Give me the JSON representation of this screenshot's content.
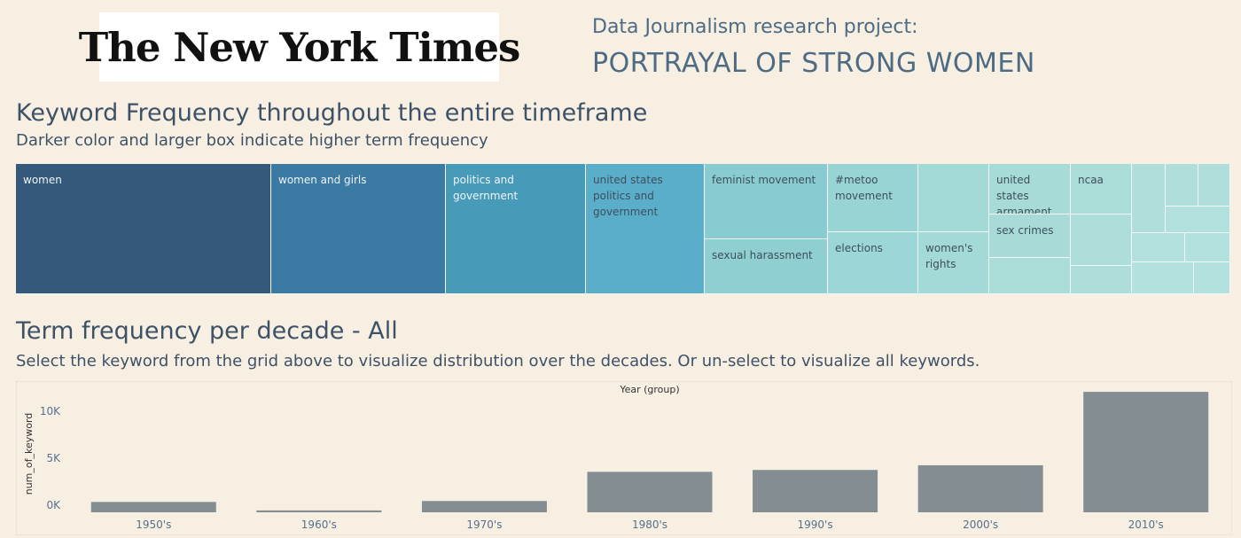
{
  "header": {
    "logo_text": "The New York Times",
    "project_subtitle": "Data Journalism research project:",
    "project_title": "PORTRAYAL OF STRONG WOMEN"
  },
  "section1": {
    "title": "Keyword Frequency throughout the entire timeframe",
    "subtitle": "Darker color and larger box indicate higher term frequency"
  },
  "treemap": {
    "tiles": [
      {
        "label": "women",
        "color": "#34597a"
      },
      {
        "label": "women and girls",
        "color": "#3b7ba3"
      },
      {
        "label": "politics and government",
        "color": "#479bb8"
      },
      {
        "label": "united states politics and government",
        "color": "#5aaeca"
      },
      {
        "label": "feminist movement",
        "color": "#88cbd0"
      },
      {
        "label": "sexual harassment",
        "color": "#8fcfd2"
      },
      {
        "label": "#metoo movement",
        "color": "#99d4d4"
      },
      {
        "label": "elections",
        "color": "#9dd6d6"
      },
      {
        "label": "",
        "color": "#a3d9d6"
      },
      {
        "label": "women's rights",
        "color": "#a3d9d6"
      },
      {
        "label": "united states armament",
        "color": "#a6dbd7"
      },
      {
        "label": "sex crimes",
        "color": "#a8dbd8"
      },
      {
        "label": "",
        "color": "#aadcd8"
      },
      {
        "label": "ncaa",
        "color": "#aadcd8"
      },
      {
        "label": "",
        "color": "#addeda"
      },
      {
        "label": "",
        "color": "#addeda"
      },
      {
        "label": "",
        "color": "#b0dfdb"
      },
      {
        "label": "",
        "color": "#b0dfdb"
      },
      {
        "label": "",
        "color": "#b0dfdb"
      },
      {
        "label": "",
        "color": "#b2e0dc"
      },
      {
        "label": "",
        "color": "#b2e0dc"
      },
      {
        "label": "",
        "color": "#b3e1dd"
      },
      {
        "label": "",
        "color": "#b3e1dd"
      },
      {
        "label": "",
        "color": "#b3e1dd"
      }
    ]
  },
  "section2": {
    "title": "Term frequency per decade - All",
    "subtitle": "Select the keyword from the grid above to visualize distribution over the decades. Or un-select to visualize all keywords."
  },
  "chart_data": {
    "type": "bar",
    "title": "Year (group)",
    "xlabel": "",
    "ylabel": "num_of_keyword",
    "categories": [
      "1950's",
      "1960's",
      "1970's",
      "1980's",
      "1990's",
      "2000's",
      "2010's"
    ],
    "values": [
      1100,
      200,
      1200,
      4300,
      4500,
      5000,
      12800
    ],
    "ylim": [
      0,
      13000
    ],
    "yticks": [
      0,
      5000,
      10000
    ],
    "ytick_labels": [
      "0K",
      "5K",
      "10K"
    ],
    "bar_color": "#848d91",
    "grid": false
  }
}
